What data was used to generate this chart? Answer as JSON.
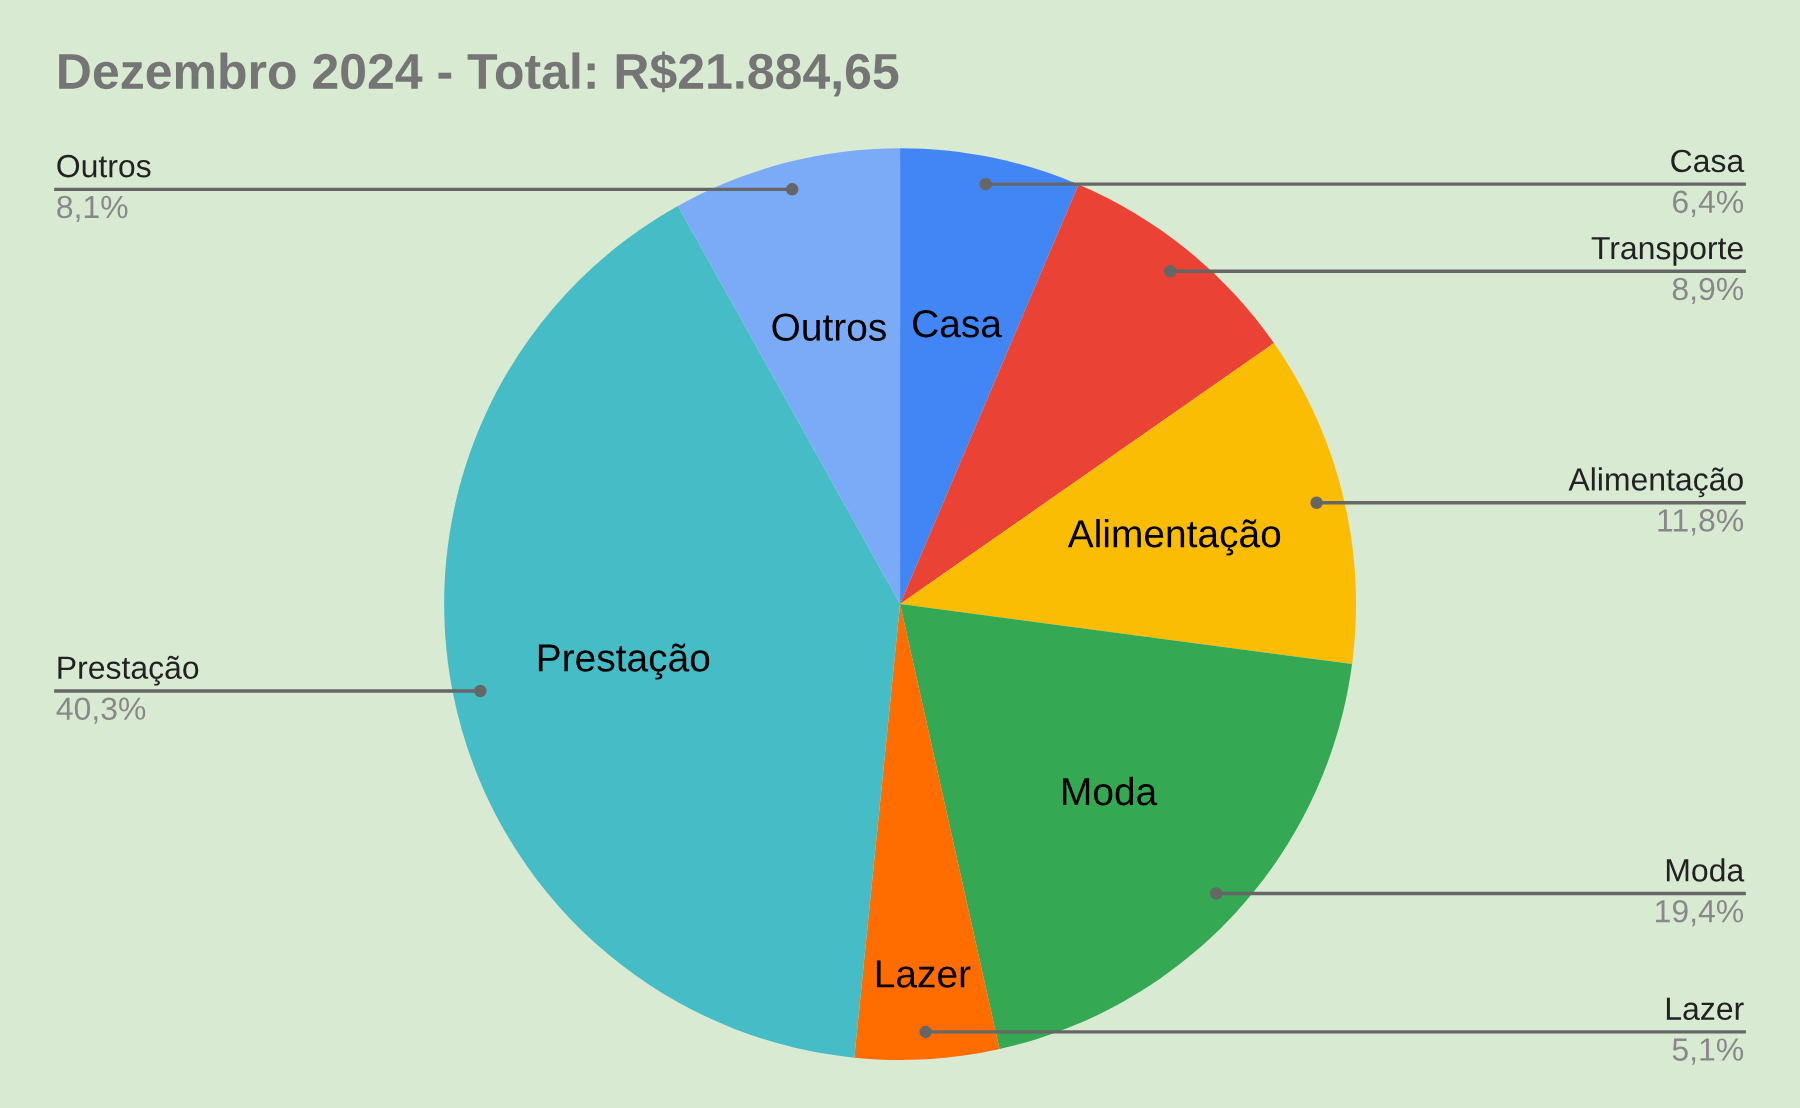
{
  "chart_data": {
    "type": "pie",
    "title": "Dezembro 2024 - Total: R$21.884,65",
    "categories": [
      "Casa",
      "Transporte",
      "Alimentação",
      "Moda",
      "Lazer",
      "Prestação",
      "Outros"
    ],
    "values": [
      6.4,
      8.9,
      11.8,
      19.4,
      5.1,
      40.3,
      8.1
    ],
    "colors": [
      "#4285f4",
      "#ea4335",
      "#fbbc04",
      "#34a853",
      "#ff6d01",
      "#46bdc6",
      "#7baaf7"
    ],
    "value_labels": [
      "6,4%",
      "8,9%",
      "11,8%",
      "19,4%",
      "5,1%",
      "40,3%",
      "8,1%"
    ],
    "legend": false
  }
}
